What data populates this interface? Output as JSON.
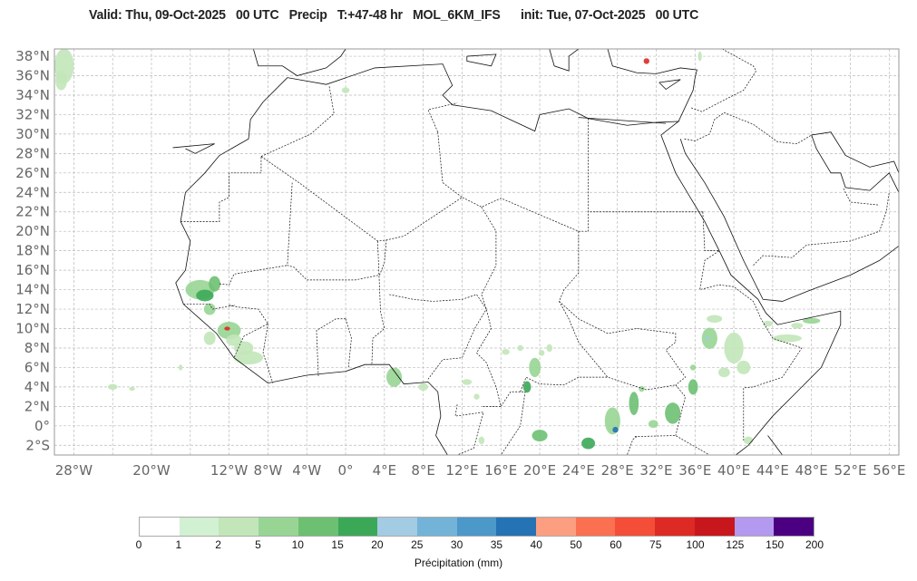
{
  "title": "Valid: Thu, 09-Oct-2025   00 UTC   Precip   T:+47-48 hr   MOL_6KM_IFS      init: Tue, 07-Oct-2025   00 UTC",
  "map": {
    "lat_labels": [
      "38°N",
      "36°N",
      "34°N",
      "32°N",
      "30°N",
      "28°N",
      "26°N",
      "24°N",
      "22°N",
      "20°N",
      "18°N",
      "16°N",
      "14°N",
      "12°N",
      "10°N",
      "8°N",
      "6°N",
      "4°N",
      "2°N",
      "0°",
      "2°S"
    ],
    "lat_values": [
      38,
      36,
      34,
      32,
      30,
      28,
      26,
      24,
      22,
      20,
      18,
      16,
      14,
      12,
      10,
      8,
      6,
      4,
      2,
      0,
      -2
    ],
    "lon_labels": [
      "28°W",
      "20°W",
      "12°W",
      "8°W",
      "4°W",
      "0°",
      "4°E",
      "8°E",
      "12°E",
      "16°E",
      "20°E",
      "24°E",
      "28°E",
      "32°E",
      "36°E",
      "40°E",
      "44°E",
      "48°E",
      "52°E",
      "56°E"
    ],
    "lon_values": [
      -28,
      -20,
      -12,
      -8,
      -4,
      0,
      4,
      8,
      12,
      16,
      20,
      24,
      28,
      32,
      36,
      40,
      44,
      48,
      52,
      56
    ],
    "extent": {
      "lon": [
        -30,
        57
      ],
      "lat": [
        -3,
        38.75
      ]
    }
  },
  "colorbar": {
    "label": "Précipitation (mm)",
    "ticks": [
      "0",
      "1",
      "2",
      "5",
      "10",
      "15",
      "20",
      "25",
      "30",
      "35",
      "40",
      "50",
      "60",
      "75",
      "100",
      "125",
      "150",
      "200"
    ],
    "colors": [
      "#ffffff",
      "#d2f0d2",
      "#c2e6b9",
      "#98d594",
      "#6dc072",
      "#3ba858",
      "#a3cbe3",
      "#74b3d8",
      "#4b98c9",
      "#2572b5",
      "#fc9f81",
      "#fb7050",
      "#f44e38",
      "#dd2a25",
      "#c8171c",
      "#b399ef",
      "#4b0082"
    ]
  }
}
